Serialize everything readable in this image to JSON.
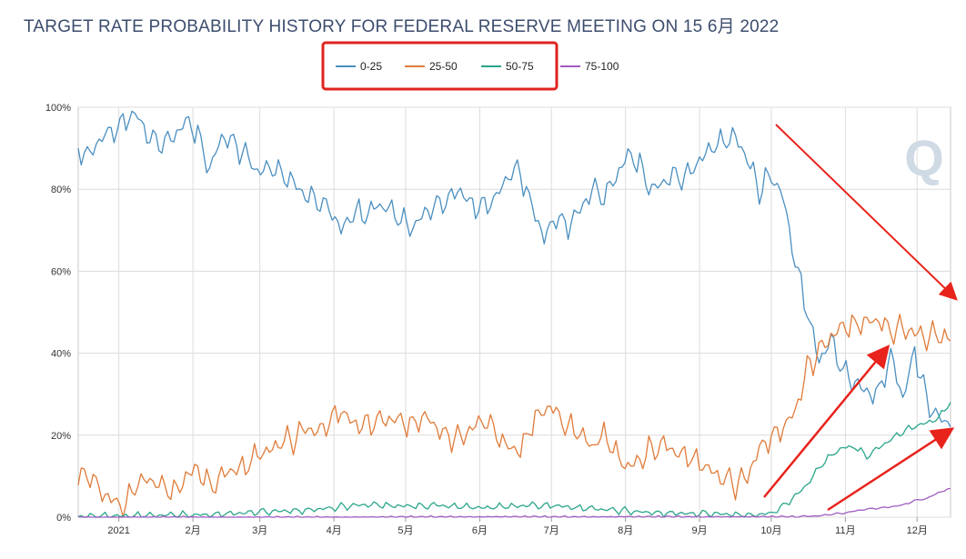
{
  "chart_data": {
    "type": "line",
    "title": "TARGET RATE PROBABILITY HISTORY FOR FEDERAL RESERVE MEETING ON 15 6月 2022",
    "xlabel": "",
    "ylabel": "",
    "ylim": [
      0,
      100
    ],
    "y_ticks": [
      "0%",
      "20%",
      "40%",
      "60%",
      "80%",
      "100%"
    ],
    "x_ticks": [
      "2021",
      "2月",
      "3月",
      "4月",
      "5月",
      "6月",
      "7月",
      "8月",
      "9月",
      "10月",
      "11月",
      "12月"
    ],
    "x_unit": "days since 2020-12-15",
    "x_tick_positions": [
      17,
      48,
      76,
      107,
      137,
      168,
      198,
      229,
      260,
      290,
      321,
      351
    ],
    "x_range": [
      0,
      365
    ],
    "legend_position": "top-center",
    "grid": true,
    "watermark": "Q",
    "series": [
      {
        "name": "0-25",
        "color": "#4a8fc0",
        "x": [
          0,
          5,
          10,
          15,
          20,
          25,
          30,
          35,
          40,
          45,
          50,
          55,
          60,
          65,
          70,
          75,
          80,
          85,
          90,
          95,
          100,
          105,
          110,
          115,
          120,
          125,
          130,
          135,
          140,
          145,
          150,
          155,
          160,
          165,
          170,
          175,
          180,
          185,
          190,
          195,
          200,
          205,
          210,
          215,
          220,
          225,
          230,
          235,
          240,
          245,
          250,
          255,
          260,
          265,
          270,
          275,
          280,
          285,
          290,
          295,
          300,
          305,
          310,
          315,
          320,
          325,
          330,
          335,
          340,
          345,
          350,
          355,
          360,
          365
        ],
        "values": [
          90,
          89,
          93,
          95,
          97,
          98,
          92,
          90,
          93,
          96,
          94,
          85,
          93,
          92,
          88,
          84,
          85,
          83,
          82,
          78,
          78,
          76,
          70,
          75,
          73,
          76,
          75,
          72,
          71,
          74,
          77,
          78,
          80,
          76,
          75,
          78,
          83,
          84,
          76,
          68,
          74,
          71,
          75,
          80,
          77,
          83,
          88,
          86,
          80,
          82,
          84,
          83,
          87,
          90,
          91,
          93,
          87,
          80,
          84,
          78,
          63,
          50,
          38,
          43,
          35,
          33,
          30,
          31,
          40,
          29,
          41,
          28,
          24,
          22
        ]
      },
      {
        "name": "25-50",
        "color": "#e07b39",
        "x": [
          0,
          5,
          10,
          15,
          20,
          25,
          30,
          35,
          40,
          45,
          50,
          55,
          60,
          65,
          70,
          75,
          80,
          85,
          90,
          95,
          100,
          105,
          110,
          115,
          120,
          125,
          130,
          135,
          140,
          145,
          150,
          155,
          160,
          165,
          170,
          175,
          180,
          185,
          190,
          195,
          200,
          205,
          210,
          215,
          220,
          225,
          230,
          235,
          240,
          245,
          250,
          255,
          260,
          265,
          270,
          275,
          280,
          285,
          290,
          295,
          300,
          305,
          310,
          315,
          320,
          325,
          330,
          335,
          340,
          345,
          350,
          355,
          360,
          365
        ],
        "values": [
          10,
          11,
          6,
          4,
          3,
          8,
          9,
          7,
          6,
          10,
          12,
          8,
          10,
          12,
          12,
          15,
          16,
          18,
          19,
          22,
          21,
          24,
          26,
          23,
          22,
          23,
          24,
          23,
          23,
          25,
          22,
          20,
          19,
          22,
          23,
          20,
          17,
          16,
          23,
          27,
          26,
          22,
          20,
          17,
          20,
          15,
          12,
          14,
          17,
          18,
          16,
          15,
          13,
          11,
          9,
          8,
          10,
          17,
          20,
          22,
          26,
          36,
          40,
          44,
          46,
          47,
          48,
          48,
          46,
          46,
          45,
          44,
          44,
          43
        ]
      },
      {
        "name": "50-75",
        "color": "#2aa58b",
        "x": [
          0,
          10,
          20,
          30,
          40,
          50,
          60,
          70,
          80,
          90,
          100,
          110,
          120,
          130,
          140,
          150,
          160,
          170,
          180,
          190,
          200,
          210,
          220,
          230,
          240,
          250,
          260,
          270,
          280,
          290,
          295,
          300,
          305,
          310,
          315,
          320,
          325,
          330,
          335,
          340,
          345,
          350,
          355,
          360,
          365
        ],
        "values": [
          0.3,
          0.3,
          0.3,
          0.4,
          0.5,
          0.6,
          0.8,
          1.0,
          1.3,
          1.6,
          2.0,
          2.5,
          3.0,
          2.8,
          2.7,
          3.0,
          2.5,
          2.2,
          2.6,
          3.0,
          2.8,
          2.2,
          1.8,
          1.5,
          1.2,
          1.0,
          0.8,
          0.7,
          0.5,
          1.0,
          3,
          5,
          8,
          12,
          15,
          17,
          17,
          15,
          17,
          19,
          21,
          22,
          23,
          24,
          28
        ]
      },
      {
        "name": "75-100",
        "color": "#a05cc0",
        "x": [
          0,
          50,
          100,
          150,
          200,
          250,
          300,
          310,
          320,
          330,
          340,
          345,
          350,
          355,
          360,
          365
        ],
        "values": [
          0,
          0,
          0,
          0.1,
          0.1,
          0.1,
          0.1,
          0.3,
          1.0,
          2.0,
          2.5,
          3.0,
          4.0,
          4.5,
          6.0,
          7.0
        ]
      }
    ]
  }
}
